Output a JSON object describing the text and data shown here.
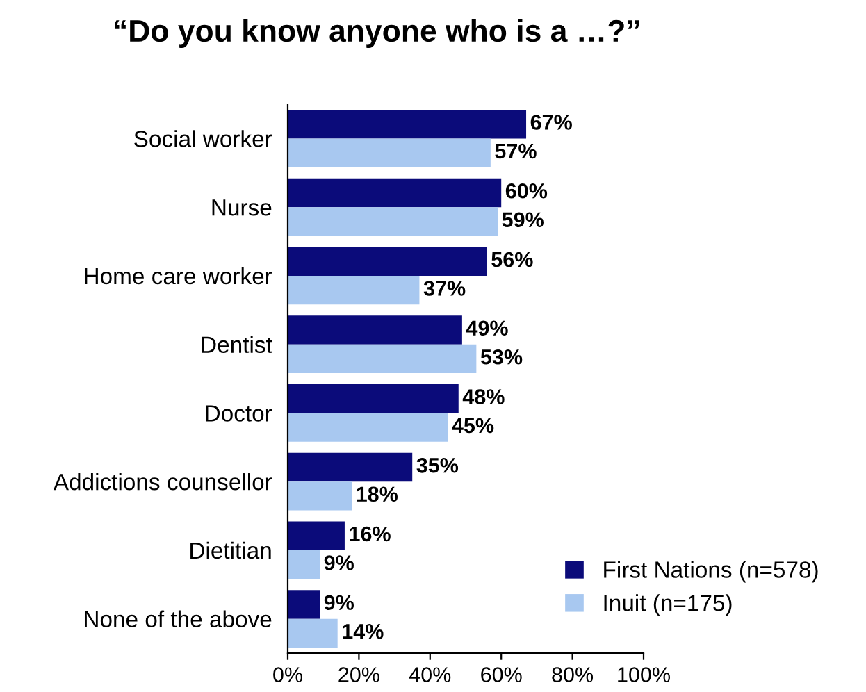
{
  "chart_data": {
    "type": "bar",
    "orientation": "horizontal",
    "title": "“Do you know anyone who is a …?”",
    "categories": [
      "Social worker",
      "Nurse",
      "Home care worker",
      "Dentist",
      "Doctor",
      "Addictions counsellor",
      "Dietitian",
      "None of the above"
    ],
    "series": [
      {
        "name": "First Nations (n=578)",
        "color": "#0b0b7a",
        "values": [
          67,
          60,
          56,
          49,
          48,
          35,
          16,
          9
        ],
        "value_labels": [
          "67%",
          "60%",
          "56%",
          "49%",
          "48%",
          "35%",
          "16%",
          "9%"
        ]
      },
      {
        "name": "Inuit (n=175)",
        "color": "#a8c8f0",
        "values": [
          57,
          59,
          37,
          53,
          45,
          18,
          9,
          14
        ],
        "value_labels": [
          "57%",
          "59%",
          "37%",
          "53%",
          "45%",
          "18%",
          "9%",
          "14%"
        ]
      }
    ],
    "xlim": [
      0,
      100
    ],
    "xticks": [
      {
        "value": 0,
        "label": "0%"
      },
      {
        "value": 20,
        "label": "20%"
      },
      {
        "value": 40,
        "label": "40%"
      },
      {
        "value": 60,
        "label": "60%"
      },
      {
        "value": 80,
        "label": "80%"
      },
      {
        "value": 100,
        "label": "100%"
      }
    ],
    "grid": false,
    "legend": "bottom right"
  }
}
